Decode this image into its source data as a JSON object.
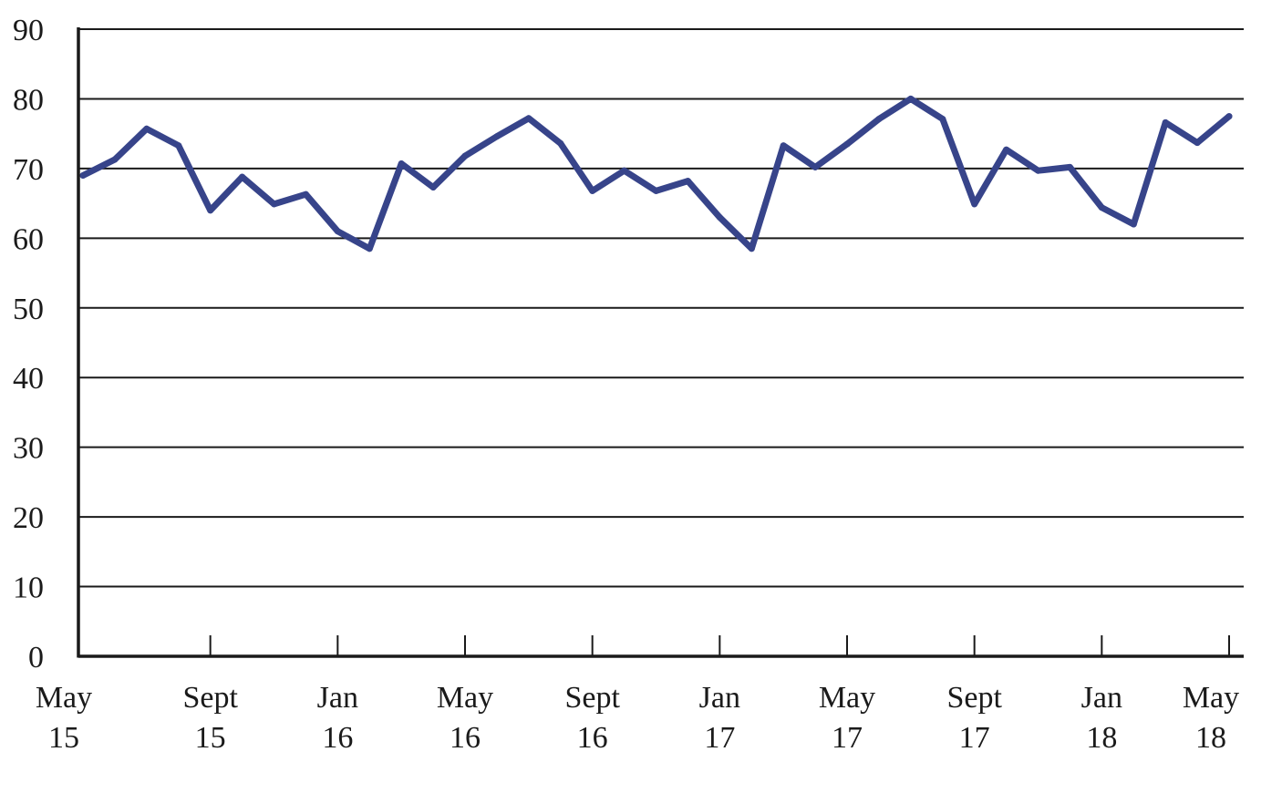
{
  "chart_data": {
    "type": "line",
    "title": "",
    "xlabel": "",
    "ylabel": "",
    "ylim": [
      0,
      90
    ],
    "yticks": [
      "0",
      "10",
      "20",
      "30",
      "40",
      "50",
      "60",
      "70",
      "80",
      "90"
    ],
    "grid": true,
    "x": [
      "May 15",
      "Jun 15",
      "Jul 15",
      "Aug 15",
      "Sept 15",
      "Oct 15",
      "Nov 15",
      "Dec 15",
      "Jan 16",
      "Feb 16",
      "Mar 16",
      "Apr 16",
      "May 16",
      "Jun 16",
      "Jul 16",
      "Aug 16",
      "Sept 16",
      "Oct 16",
      "Nov 16",
      "Dec 16",
      "Jan 17",
      "Feb 17",
      "Mar 17",
      "Apr 17",
      "May 17",
      "Jun 17",
      "Jul 17",
      "Aug 17",
      "Sept 17",
      "Oct 17",
      "Nov 17",
      "Dec 17",
      "Jan 18",
      "Feb 18",
      "Mar 18",
      "Apr 18",
      "May 18"
    ],
    "xtick_labels": [
      {
        "month": "May",
        "year": "15"
      },
      {
        "month": "Sept",
        "year": "15"
      },
      {
        "month": "Jan",
        "year": "16"
      },
      {
        "month": "May",
        "year": "16"
      },
      {
        "month": "Sept",
        "year": "16"
      },
      {
        "month": "Jan",
        "year": "17"
      },
      {
        "month": "May",
        "year": "17"
      },
      {
        "month": "Sept",
        "year": "17"
      },
      {
        "month": "Jan",
        "year": "18"
      },
      {
        "month": "May",
        "year": "18"
      }
    ],
    "series": [
      {
        "color": "#37448a",
        "values": [
          69.0,
          71.3,
          75.7,
          73.3,
          64.0,
          68.8,
          64.9,
          66.3,
          61.0,
          58.5,
          70.7,
          67.3,
          71.8,
          74.6,
          77.2,
          73.6,
          66.8,
          69.7,
          66.8,
          68.2,
          63.0,
          58.5,
          73.3,
          70.2,
          73.5,
          77.1,
          80.0,
          77.1,
          64.9,
          72.7,
          69.7,
          70.2,
          64.4,
          62.0,
          76.6,
          73.7,
          77.5
        ]
      }
    ]
  }
}
